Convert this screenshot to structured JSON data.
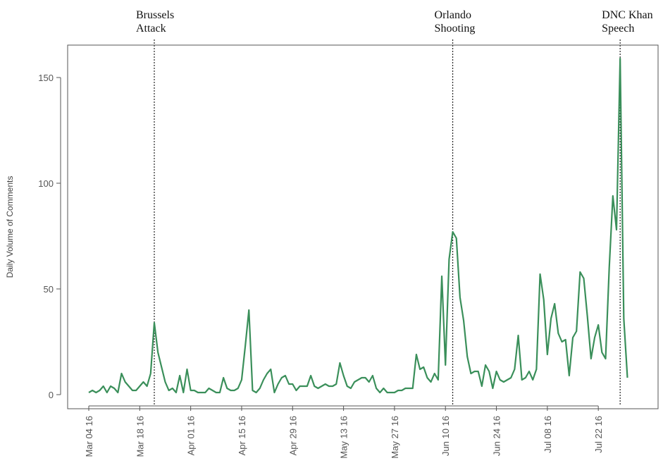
{
  "chart_data": {
    "type": "line",
    "title": "",
    "xlabel": "",
    "ylabel": "Daily Volume of Comments",
    "series_color": "#3a8f5a",
    "ylim": [
      -5,
      166
    ],
    "x_range": [
      "2016-03-04",
      "2016-08-02"
    ],
    "y_ticks": [
      0,
      50,
      100,
      150
    ],
    "x_ticks": [
      {
        "date": "2016-03-04",
        "label": "Mar 04 16"
      },
      {
        "date": "2016-03-18",
        "label": "Mar 18 16"
      },
      {
        "date": "2016-04-01",
        "label": "Apr 01 16"
      },
      {
        "date": "2016-04-15",
        "label": "Apr 15 16"
      },
      {
        "date": "2016-04-29",
        "label": "Apr 29 16"
      },
      {
        "date": "2016-05-13",
        "label": "May 13 16"
      },
      {
        "date": "2016-05-27",
        "label": "May 27 16"
      },
      {
        "date": "2016-06-10",
        "label": "Jun 10 16"
      },
      {
        "date": "2016-06-24",
        "label": "Jun 24 16"
      },
      {
        "date": "2016-07-08",
        "label": "Jul 08 16"
      },
      {
        "date": "2016-07-22",
        "label": "Jul 22 16"
      }
    ],
    "events": [
      {
        "date": "2016-03-22",
        "lines": [
          "Brussels",
          "Attack"
        ]
      },
      {
        "date": "2016-06-12",
        "lines": [
          "Orlando",
          "Shooting"
        ]
      },
      {
        "date": "2016-07-28",
        "lines": [
          "DNC Khan",
          "Speech"
        ]
      }
    ],
    "start_date": "2016-03-04",
    "values": [
      1,
      2,
      1,
      2,
      4,
      1,
      4,
      3,
      1,
      10,
      6,
      4,
      2,
      2,
      4,
      6,
      4,
      10,
      34,
      20,
      13,
      6,
      2,
      3,
      1,
      9,
      1,
      12,
      2,
      2,
      1,
      1,
      1,
      3,
      2,
      1,
      1,
      8,
      3,
      2,
      2,
      3,
      7,
      23,
      40,
      2,
      1,
      3,
      7,
      10,
      12,
      1,
      5,
      8,
      9,
      5,
      5,
      2,
      4,
      4,
      4,
      9,
      4,
      3,
      4,
      5,
      4,
      4,
      5,
      15,
      9,
      4,
      3,
      6,
      7,
      8,
      8,
      6,
      9,
      3,
      1,
      3,
      1,
      1,
      1,
      2,
      2,
      3,
      3,
      3,
      19,
      12,
      13,
      8,
      6,
      10,
      7,
      56,
      14,
      64,
      77,
      74,
      46,
      35,
      18,
      10,
      11,
      11,
      4,
      14,
      11,
      3,
      11,
      7,
      6,
      7,
      8,
      12,
      28,
      7,
      8,
      11,
      7,
      12,
      57,
      45,
      19,
      36,
      43,
      29,
      25,
      26,
      9,
      27,
      30,
      58,
      55,
      37,
      17,
      27,
      33,
      20,
      17,
      60,
      94,
      78,
      159,
      36,
      8
    ]
  }
}
